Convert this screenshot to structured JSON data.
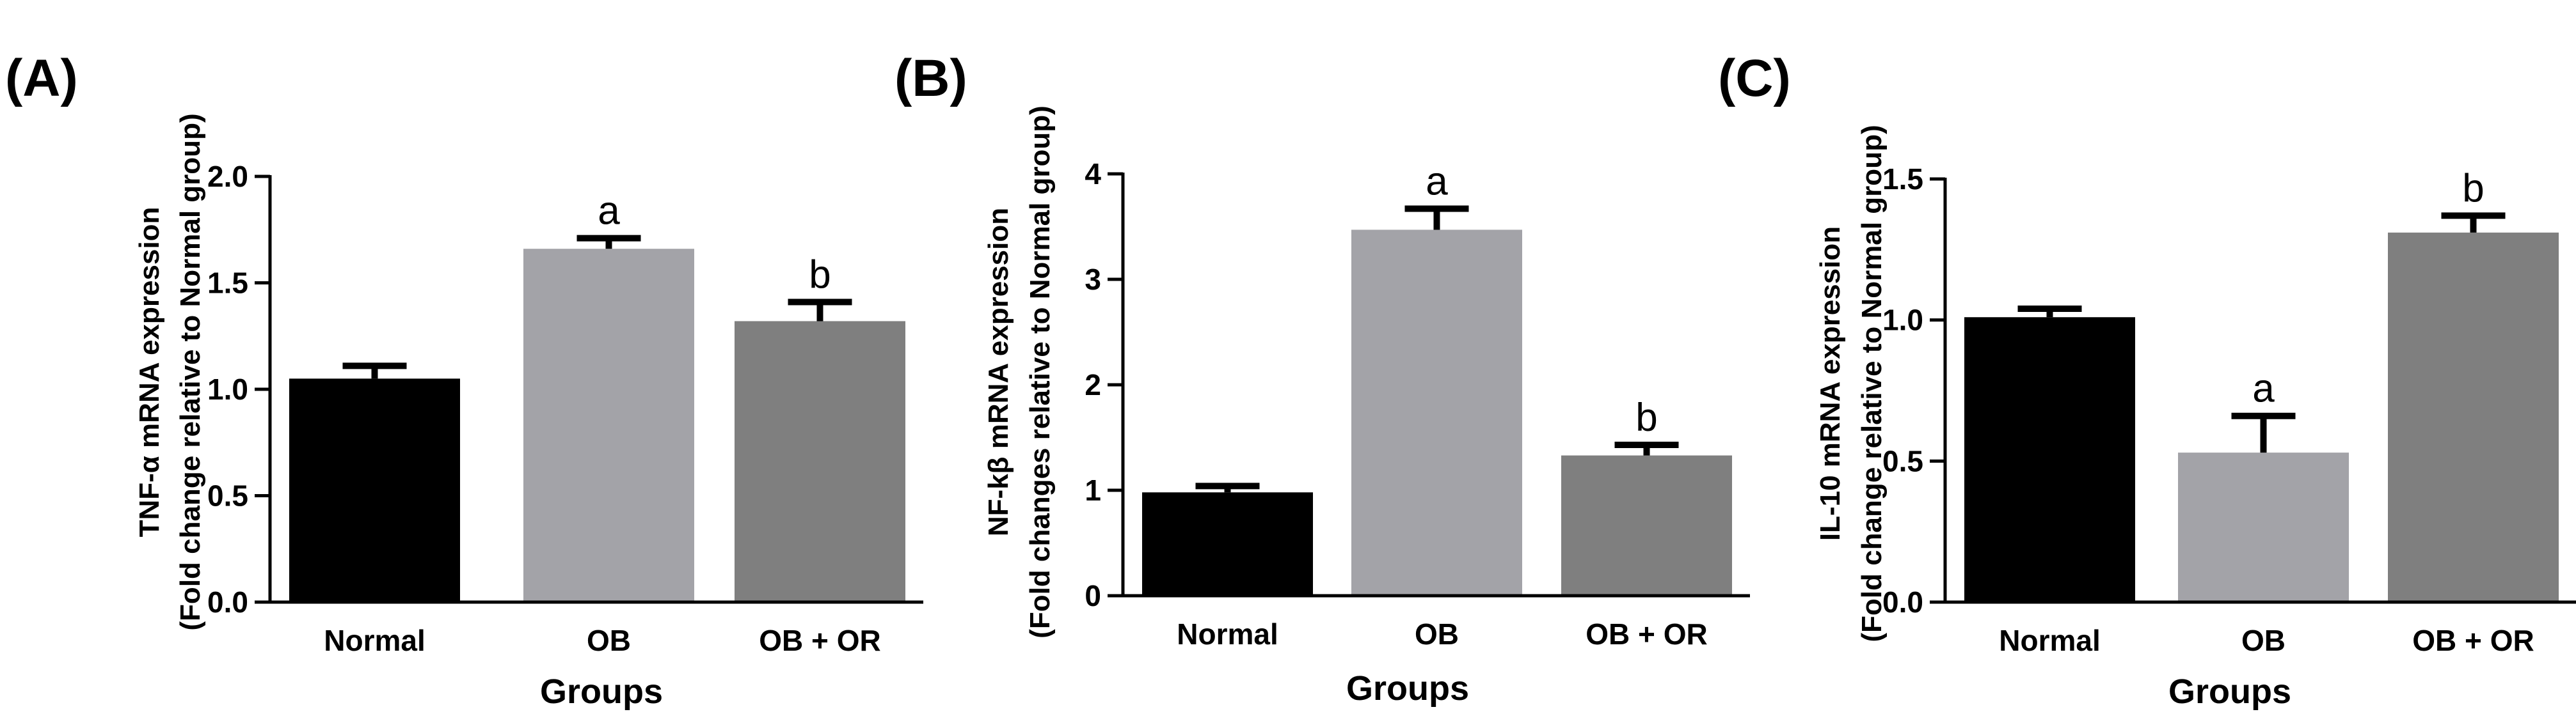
{
  "chart_data": [
    {
      "type": "bar",
      "panel_label": "(A)",
      "title": "",
      "ylabel_line1": "TNF-α mRNA expression",
      "ylabel_line2": "(Fold change relative to Normal group)",
      "xlabel": "Groups",
      "categories": [
        "Normal",
        "OB",
        "OB + OR"
      ],
      "values": [
        1.05,
        1.66,
        1.32
      ],
      "errors": [
        0.06,
        0.05,
        0.09
      ],
      "significance": [
        "",
        "a",
        "b"
      ],
      "colors": [
        "#000000",
        "#a3a3a8",
        "#7f7f7f"
      ],
      "ylim": [
        0,
        2.0
      ],
      "yticks": [
        0.0,
        0.5,
        1.0,
        1.5,
        2.0
      ],
      "ytick_labels": [
        "0.0",
        "0.5",
        "1.0",
        "1.5",
        "2.0"
      ]
    },
    {
      "type": "bar",
      "panel_label": "(B)",
      "title": "",
      "ylabel_line1": "NF-kβ mRNA expression",
      "ylabel_line2": "(Fold changes relative to Normal group)",
      "xlabel": "Groups",
      "categories": [
        "Normal",
        "OB",
        "OB + OR"
      ],
      "values": [
        0.98,
        3.47,
        1.33
      ],
      "errors": [
        0.06,
        0.2,
        0.1
      ],
      "significance": [
        "",
        "a",
        "b"
      ],
      "colors": [
        "#000000",
        "#a3a3a8",
        "#7f7f7f"
      ],
      "ylim": [
        0,
        4
      ],
      "yticks": [
        0,
        1,
        2,
        3,
        4
      ],
      "ytick_labels": [
        "0",
        "1",
        "2",
        "3",
        "4"
      ]
    },
    {
      "type": "bar",
      "panel_label": "(C)",
      "title": "",
      "ylabel_line1": "IL-10 mRNA expression",
      "ylabel_line2": "(Fold change relative to Normal group)",
      "xlabel": "Groups",
      "categories": [
        "Normal",
        "OB",
        "OB + OR"
      ],
      "values": [
        1.01,
        0.53,
        1.31
      ],
      "errors": [
        0.03,
        0.13,
        0.06
      ],
      "significance": [
        "",
        "a",
        "b"
      ],
      "colors": [
        "#000000",
        "#a3a3a8",
        "#7f7f7f"
      ],
      "ylim": [
        0,
        1.5
      ],
      "yticks": [
        0.0,
        0.5,
        1.0,
        1.5
      ],
      "ytick_labels": [
        "0.0",
        "0.5",
        "1.0",
        "1.5"
      ]
    }
  ]
}
